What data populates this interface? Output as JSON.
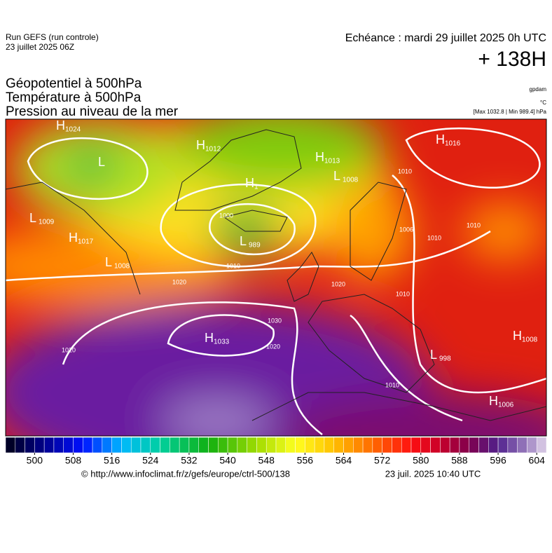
{
  "header": {
    "run": "Run GEFS (run controle)",
    "run_date": "23 juillet 2025 06Z",
    "echeance": "Echéance : mardi 29 juillet 2025 0h UTC",
    "lead": "+ 138H"
  },
  "titles": [
    "Géopotentiel à 500hPa",
    "Température à 500hPa",
    "Pression au niveau de la mer"
  ],
  "units": {
    "geopotential": "gpdam",
    "temperature": "°C",
    "pressure": "[Max 1032.8 | Min 989.4] hPa"
  },
  "centers": [
    {
      "letter": "H",
      "value": "1024"
    },
    {
      "letter": "L",
      "value": ""
    },
    {
      "letter": "L",
      "value": "1009"
    },
    {
      "letter": "H",
      "value": "1017"
    },
    {
      "letter": "L",
      "value": "1008"
    },
    {
      "letter": "H",
      "value": "1012"
    },
    {
      "letter": "H",
      "value": "1"
    },
    {
      "letter": "H",
      "value": "1013"
    },
    {
      "letter": "L",
      "value": "1008"
    },
    {
      "letter": "H",
      "value": "1016"
    },
    {
      "letter": "L",
      "value": "989"
    },
    {
      "letter": "H",
      "value": "1033"
    },
    {
      "letter": "H",
      "value": "1008"
    },
    {
      "letter": "L",
      "value": "998"
    },
    {
      "letter": "H",
      "value": "1006"
    }
  ],
  "isobar_labels": [
    "1020",
    "1010",
    "1020",
    "1030",
    "1020",
    "1010",
    "1006",
    "1010",
    "1010",
    "1020",
    "1010",
    "1010",
    "1000"
  ],
  "colorbar": {
    "range": [
      494,
      606
    ],
    "step": 2,
    "ticks": [
      500,
      508,
      516,
      524,
      532,
      540,
      548,
      556,
      564,
      572,
      580,
      588,
      596,
      604
    ],
    "stops": [
      [
        494,
        "#000018"
      ],
      [
        502,
        "#00008c"
      ],
      [
        510,
        "#0010ff"
      ],
      [
        518,
        "#00b8ff"
      ],
      [
        526,
        "#00d0a0"
      ],
      [
        536,
        "#10b010"
      ],
      [
        546,
        "#a0dc00"
      ],
      [
        554,
        "#ffff20"
      ],
      [
        562,
        "#ffc000"
      ],
      [
        570,
        "#ff6a00"
      ],
      [
        578,
        "#ff1010"
      ],
      [
        584,
        "#c8002a"
      ],
      [
        590,
        "#80004e"
      ],
      [
        596,
        "#50208c"
      ],
      [
        602,
        "#9c80c0"
      ],
      [
        606,
        "#e4d8ec"
      ]
    ]
  },
  "footer": {
    "url": "© http://www.infoclimat.fr/z/gefs/europe/ctrl-500/138",
    "time": "23 juil. 2025 10:40 UTC"
  }
}
